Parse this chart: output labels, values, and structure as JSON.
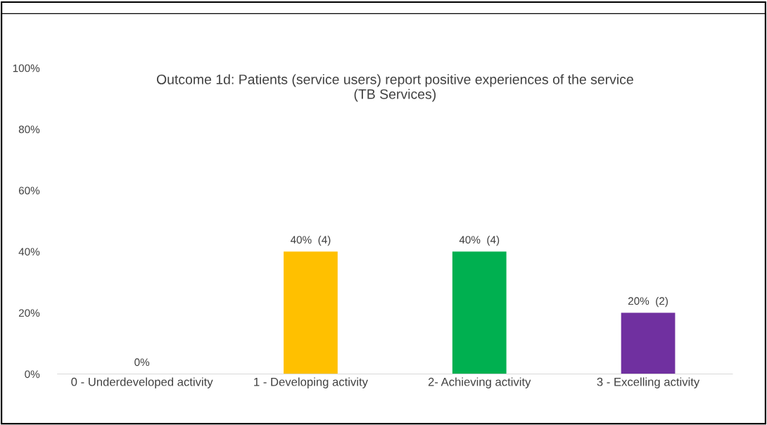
{
  "chart_data": {
    "type": "bar",
    "title": "Outcome 1d: Patients (service users) report positive experiences of the service\n(TB Services)",
    "categories": [
      "0 - Underdeveloped activity",
      "1 - Developing activity",
      "2- Achieving activity",
      "3 - Excelling activity"
    ],
    "values": [
      0,
      40,
      40,
      20
    ],
    "colors": [
      "#4472c4",
      "#ffc000",
      "#00b050",
      "#7030a0"
    ],
    "value_labels": [
      "0%",
      "40%  (4)",
      "40%  (4)",
      "20%  (2)"
    ],
    "ylim": [
      0,
      100
    ],
    "yticks": [
      {
        "value": 0,
        "label": "0%"
      },
      {
        "value": 20,
        "label": "20%"
      },
      {
        "value": 40,
        "label": "40%"
      },
      {
        "value": 60,
        "label": "60%"
      },
      {
        "value": 80,
        "label": "80%"
      },
      {
        "value": 100,
        "label": "100%"
      }
    ],
    "grid": false,
    "legend": false
  }
}
